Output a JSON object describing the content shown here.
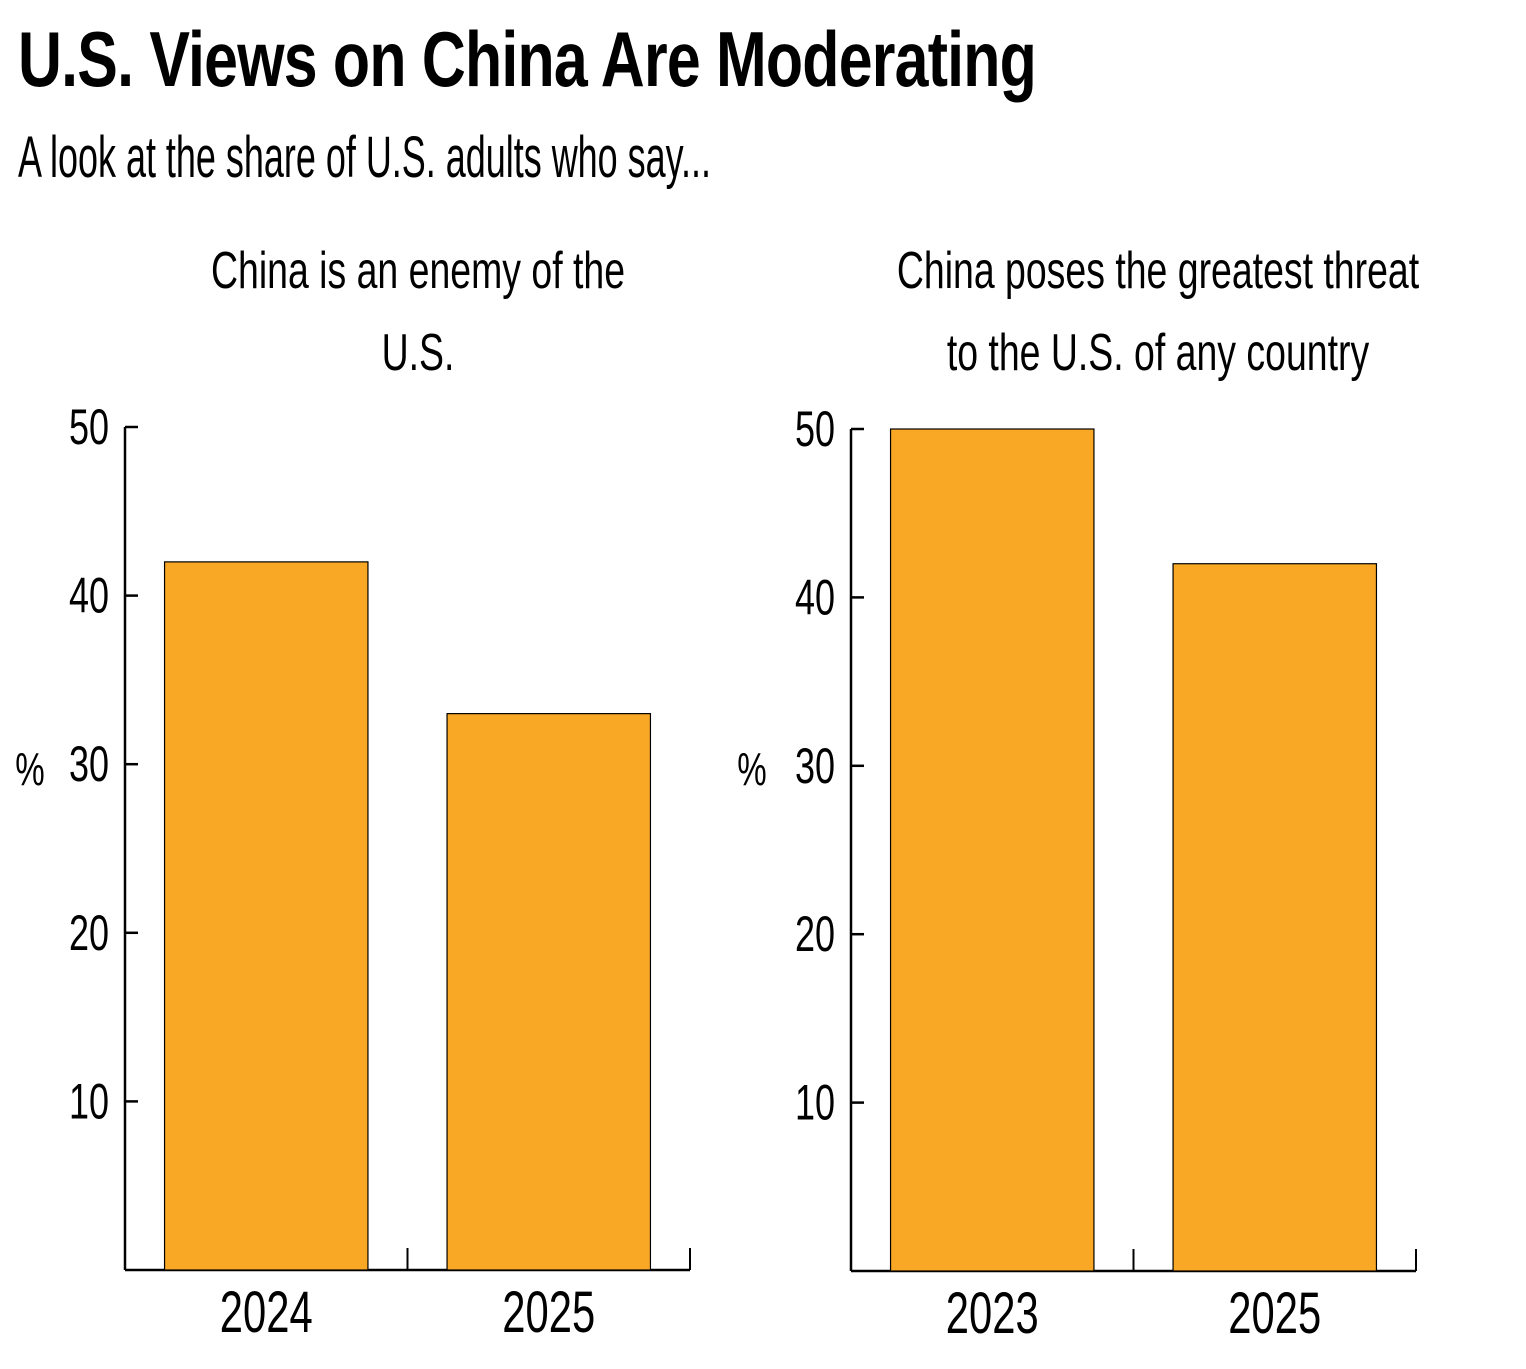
{
  "title": "U.S. Views on China Are Moderating",
  "subtitle": "A look at the share of U.S. adults who say...",
  "colors": {
    "bar": "#F9A825",
    "bar_edge": "#000000",
    "axis": "#000000"
  },
  "chart_data": [
    {
      "type": "bar",
      "title": "China is an enemy of the U.S.",
      "title_lines": [
        "China is an enemy of the",
        "U.S."
      ],
      "categories": [
        "2024",
        "2025"
      ],
      "values": [
        42,
        33
      ],
      "xlabel": "",
      "ylabel": "%",
      "ylim": [
        0,
        50
      ],
      "yticks": [
        10,
        20,
        30,
        40,
        50
      ],
      "grid": false
    },
    {
      "type": "bar",
      "title": "China poses the greatest threat to the U.S. of any country",
      "title_lines": [
        "China poses the greatest threat",
        "to the U.S. of any country"
      ],
      "categories": [
        "2023",
        "2025"
      ],
      "values": [
        50,
        42
      ],
      "xlabel": "",
      "ylabel": "%",
      "ylim": [
        0,
        50
      ],
      "yticks": [
        10,
        20,
        30,
        40,
        50
      ],
      "grid": false
    }
  ]
}
